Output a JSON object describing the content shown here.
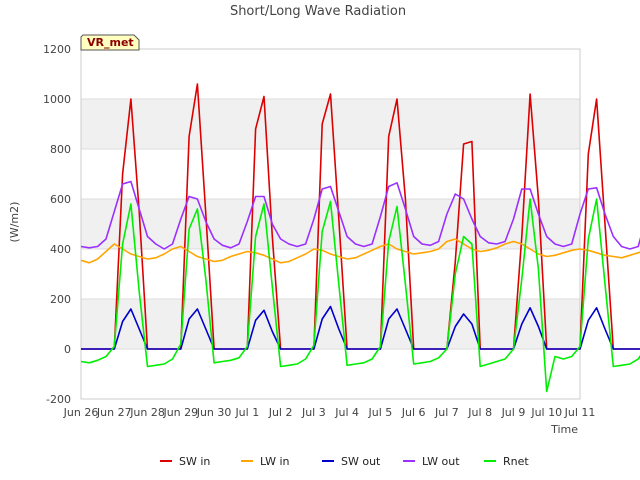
{
  "chart_data": {
    "type": "line",
    "title": "Short/Long Wave Radiation",
    "xlabel": "Time",
    "ylabel": "(W/m2)",
    "badge": "VR_met",
    "ylim": [
      -200,
      1200
    ],
    "yticks": [
      -200,
      0,
      200,
      400,
      600,
      800,
      1000,
      1200
    ],
    "xlim": [
      0,
      15
    ],
    "xticks": [
      {
        "x": 0,
        "label": "Jun 26"
      },
      {
        "x": 1,
        "label": "Jun 27"
      },
      {
        "x": 2,
        "label": "Jun 28"
      },
      {
        "x": 3,
        "label": "Jun 29"
      },
      {
        "x": 4,
        "label": "Jun 30"
      },
      {
        "x": 5,
        "label": "Jul 1"
      },
      {
        "x": 6,
        "label": "Jul 2"
      },
      {
        "x": 7,
        "label": "Jul 3"
      },
      {
        "x": 8,
        "label": "Jul 4"
      },
      {
        "x": 9,
        "label": "Jul 5"
      },
      {
        "x": 10,
        "label": "Jul 6"
      },
      {
        "x": 11,
        "label": "Jul 7"
      },
      {
        "x": 12,
        "label": "Jul 8"
      },
      {
        "x": 13,
        "label": "Jul 9"
      },
      {
        "x": 14,
        "label": "Jul 10"
      },
      {
        "x": 15,
        "label": "Jul 11"
      }
    ],
    "x_step": 0.25,
    "legend_position": "bottom",
    "series": [
      {
        "name": "SW in",
        "color": "#dd0000",
        "values": [
          0,
          0,
          0,
          0,
          0,
          700,
          1000,
          550,
          0,
          0,
          0,
          0,
          0,
          850,
          1060,
          540,
          0,
          0,
          0,
          0,
          0,
          880,
          1010,
          450,
          0,
          0,
          0,
          0,
          0,
          900,
          1020,
          520,
          0,
          0,
          0,
          0,
          0,
          850,
          1000,
          600,
          0,
          0,
          0,
          0,
          0,
          350,
          820,
          830,
          0,
          0,
          0,
          0,
          0,
          450,
          1020,
          600,
          0,
          0,
          0,
          0,
          0,
          780,
          1000,
          500,
          0,
          0,
          0,
          0,
          0,
          800,
          1040,
          600,
          0,
          0,
          0,
          0,
          0,
          820,
          1000,
          500,
          0,
          0,
          0,
          0,
          0,
          800,
          1000,
          550,
          0,
          0,
          0,
          0,
          0,
          850,
          1000,
          600,
          0,
          0,
          0,
          0,
          0,
          800,
          990,
          500,
          0,
          0,
          0,
          0,
          0,
          800,
          940,
          550,
          0,
          0,
          0
        ]
      },
      {
        "name": "LW in",
        "color": "#ffa500",
        "values": [
          355,
          345,
          360,
          390,
          420,
          400,
          380,
          370,
          360,
          365,
          380,
          400,
          410,
          390,
          370,
          360,
          350,
          355,
          370,
          380,
          390,
          385,
          375,
          360,
          345,
          350,
          365,
          380,
          400,
          395,
          380,
          370,
          360,
          365,
          380,
          395,
          410,
          420,
          400,
          390,
          380,
          385,
          390,
          400,
          430,
          440,
          420,
          400,
          390,
          395,
          405,
          420,
          430,
          420,
          400,
          380,
          370,
          375,
          385,
          395,
          400,
          395,
          385,
          375,
          370,
          365,
          375,
          385,
          400,
          405,
          390,
          375,
          355,
          350,
          360,
          370,
          380,
          385,
          370,
          355,
          340,
          340,
          350,
          360,
          370,
          375,
          365,
          350,
          335,
          330,
          340,
          355,
          365,
          370,
          360,
          345,
          330,
          330,
          345,
          360,
          380,
          385,
          370,
          350,
          340,
          345,
          360,
          370,
          380,
          380,
          360,
          345,
          335,
          360,
          375
        ]
      },
      {
        "name": "SW out",
        "color": "#0000cc",
        "values": [
          0,
          0,
          0,
          0,
          0,
          110,
          160,
          80,
          0,
          0,
          0,
          0,
          0,
          120,
          160,
          80,
          0,
          0,
          0,
          0,
          0,
          115,
          155,
          70,
          0,
          0,
          0,
          0,
          0,
          120,
          170,
          80,
          0,
          0,
          0,
          0,
          0,
          120,
          160,
          80,
          0,
          0,
          0,
          0,
          0,
          90,
          140,
          100,
          0,
          0,
          0,
          0,
          0,
          100,
          165,
          90,
          0,
          0,
          0,
          0,
          0,
          115,
          165,
          80,
          0,
          0,
          0,
          0,
          0,
          125,
          175,
          90,
          0,
          0,
          0,
          0,
          0,
          120,
          170,
          80,
          0,
          0,
          0,
          0,
          0,
          120,
          165,
          85,
          0,
          0,
          0,
          0,
          0,
          120,
          165,
          90,
          0,
          0,
          0,
          0,
          0,
          115,
          160,
          80,
          0,
          0,
          0,
          0,
          0,
          115,
          160,
          80,
          0,
          0,
          0
        ]
      },
      {
        "name": "LW out",
        "color": "#9b30ff",
        "values": [
          410,
          405,
          410,
          440,
          550,
          660,
          670,
          560,
          450,
          420,
          400,
          420,
          520,
          610,
          600,
          510,
          440,
          415,
          405,
          420,
          510,
          610,
          610,
          500,
          440,
          420,
          410,
          420,
          520,
          640,
          650,
          550,
          450,
          420,
          410,
          420,
          530,
          650,
          665,
          560,
          450,
          420,
          415,
          430,
          540,
          620,
          600,
          520,
          450,
          425,
          420,
          430,
          520,
          640,
          640,
          540,
          450,
          420,
          410,
          420,
          540,
          640,
          645,
          540,
          450,
          410,
          400,
          410,
          530,
          650,
          665,
          560,
          450,
          410,
          395,
          400,
          520,
          600,
          610,
          520,
          440,
          405,
          395,
          400,
          520,
          610,
          610,
          520,
          440,
          400,
          390,
          395,
          510,
          600,
          600,
          510,
          430,
          400,
          385,
          390,
          500,
          580,
          585,
          500,
          430,
          410,
          405,
          410,
          500,
          580,
          590,
          500,
          420,
          395,
          405
        ]
      },
      {
        "name": "Rnet",
        "color": "#00ee00",
        "values": [
          -50,
          -55,
          -45,
          -30,
          10,
          420,
          580,
          230,
          -70,
          -65,
          -60,
          -40,
          20,
          480,
          560,
          280,
          -55,
          -50,
          -45,
          -35,
          10,
          450,
          580,
          250,
          -70,
          -65,
          -60,
          -40,
          15,
          470,
          590,
          260,
          -65,
          -60,
          -55,
          -40,
          10,
          430,
          570,
          260,
          -60,
          -55,
          -50,
          -35,
          0,
          300,
          450,
          420,
          -70,
          -60,
          -50,
          -40,
          0,
          280,
          600,
          320,
          -170,
          -30,
          -40,
          -30,
          10,
          440,
          600,
          260,
          -70,
          -65,
          -60,
          -40,
          10,
          460,
          600,
          270,
          -70,
          -65,
          -60,
          -40,
          10,
          450,
          610,
          260,
          -80,
          -75,
          -65,
          -45,
          10,
          450,
          610,
          270,
          -70,
          -65,
          -60,
          -40,
          10,
          470,
          580,
          280,
          -80,
          -70,
          -60,
          -40,
          10,
          450,
          580,
          270,
          -70,
          -65,
          -55,
          -40,
          20,
          430,
          560,
          320,
          -70,
          -60,
          -30
        ]
      }
    ]
  }
}
